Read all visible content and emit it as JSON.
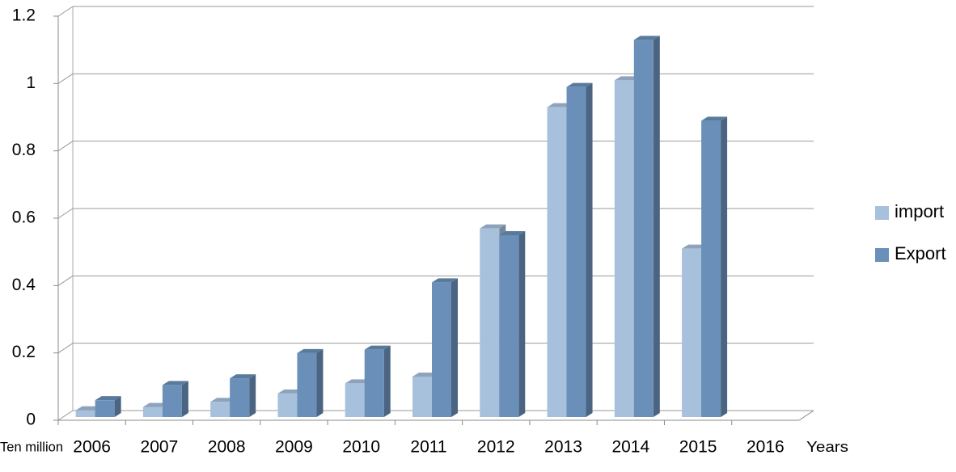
{
  "chart_data": {
    "type": "bar3d",
    "x_label": "Years",
    "y_label": "Ten million",
    "categories": [
      "2006",
      "2007",
      "2008",
      "2009",
      "2010",
      "2011",
      "2012",
      "2013",
      "2014",
      "2015",
      "2016"
    ],
    "series": [
      {
        "name": "import",
        "color": "#a7c0dc",
        "values": [
          0.02,
          0.03,
          0.045,
          0.07,
          0.1,
          0.12,
          0.56,
          0.92,
          1.0,
          0.5,
          null
        ]
      },
      {
        "name": "Export",
        "color": "#6a8fb8",
        "values": [
          0.05,
          0.095,
          0.115,
          0.19,
          0.2,
          0.4,
          0.54,
          0.98,
          1.12,
          0.88,
          null
        ]
      }
    ],
    "ylim": [
      0,
      1.2
    ],
    "yticks": [
      0,
      0.2,
      0.4,
      0.6,
      0.8,
      1,
      1.2
    ],
    "grid": true,
    "legend": "right"
  }
}
